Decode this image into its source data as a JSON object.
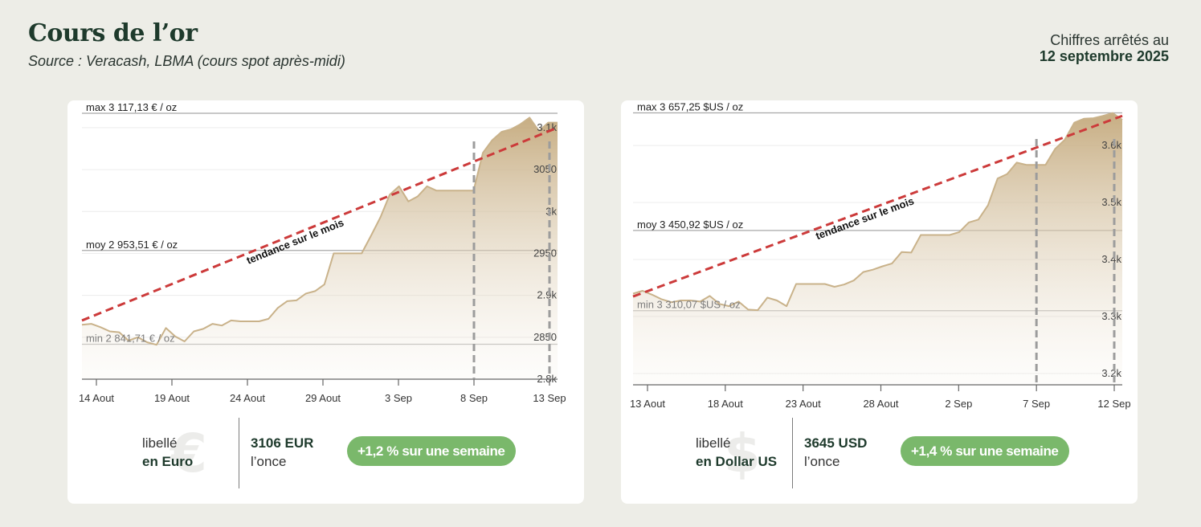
{
  "header": {
    "title": "Cours de l’or",
    "subtitle": "Source : Veracash, LBMA (cours spot après-midi)",
    "date_prefix": "Chiffres arrêtés au",
    "date": "12 septembre 2025"
  },
  "colors": {
    "background": "#edede7",
    "line": "#c9b28a",
    "trend": "#cc3a3a",
    "pill": "#7ab86b",
    "title": "#1e3a2c"
  },
  "chart_data": [
    {
      "type": "area",
      "currency": "EUR",
      "x_ticks": [
        "14 Aout",
        "19 Aout",
        "24 Aout",
        "29 Aout",
        "3 Sep",
        "8 Sep",
        "13 Sep"
      ],
      "y_ticks": [
        "2.8k",
        "2850",
        "2.9k",
        "2950",
        "3k",
        "3050",
        "3.1k"
      ],
      "ylim": [
        2800,
        3120
      ],
      "x": [
        0,
        0.6,
        1.2,
        1.8,
        2.4,
        3,
        3.6,
        4.2,
        4.8,
        5.4,
        6,
        6.6,
        7.2,
        7.8,
        8.4,
        9,
        9.6,
        10.2,
        10.8,
        11.4,
        12,
        12.6,
        13.2,
        13.8,
        14.4,
        15,
        15.6,
        16.2,
        16.8,
        17.4,
        18,
        18.6,
        19.2,
        19.8,
        20.4,
        21,
        21.6,
        22.2,
        22.8,
        23.4,
        24,
        24.6,
        25.2,
        25.8,
        26.4,
        27,
        27.6,
        28.2,
        28.8,
        29.4,
        30,
        30.6
      ],
      "values": [
        2865,
        2866,
        2862,
        2857,
        2856,
        2846,
        2850,
        2844,
        2841,
        2861,
        2851,
        2845,
        2857,
        2860,
        2866,
        2864,
        2870,
        2869,
        2869,
        2869,
        2872,
        2885,
        2893,
        2894,
        2902,
        2905,
        2913,
        2950,
        2950,
        2950,
        2950,
        2971,
        2993,
        3020,
        3030,
        3012,
        3018,
        3030,
        3025,
        3025,
        3025,
        3025,
        3025,
        3070,
        3085,
        3095,
        3098,
        3104,
        3112,
        3096,
        3106,
        3106
      ],
      "trend": {
        "label": "tendance sur le mois",
        "from": 2870,
        "to": 3100
      },
      "reference_lines": [
        {
          "label": "max 3 117,13 € / oz",
          "value": 3117.13
        },
        {
          "label": "moy 2 953,51 € / oz",
          "value": 2953.51
        },
        {
          "label": "min 2 841,71 € / oz",
          "value": 2841.71
        }
      ],
      "markers": [
        "8 Sep",
        "13 Sep"
      ],
      "footer": {
        "libelle": "libellé",
        "currency_name": "en Euro",
        "icon_symbol": "€",
        "price": "3106 EUR",
        "unit": "l’once",
        "change": "+1,2 % sur une semaine"
      }
    },
    {
      "type": "area",
      "currency": "USD",
      "x_ticks": [
        "13 Aout",
        "18 Aout",
        "23 Aout",
        "28 Aout",
        "2 Sep",
        "7 Sep",
        "12 Sep"
      ],
      "y_ticks": [
        "3.2k",
        "3.3k",
        "3.4k",
        "3.5k",
        "3.6k"
      ],
      "ylim": [
        3180,
        3665
      ],
      "x": [
        0,
        0.6,
        1.2,
        1.8,
        2.4,
        3,
        3.6,
        4.2,
        4.8,
        5.4,
        6,
        6.6,
        7.2,
        7.8,
        8.4,
        9,
        9.6,
        10.2,
        10.8,
        11.4,
        12,
        12.6,
        13.2,
        13.8,
        14.4,
        15,
        15.6,
        16.2,
        16.8,
        17.4,
        18,
        18.6,
        19.2,
        19.8,
        20.4,
        21,
        21.6,
        22.2,
        22.8,
        23.4,
        24,
        24.6,
        25.2,
        25.8,
        26.4,
        27,
        27.6,
        28.2,
        28.8,
        29.4,
        30,
        30.6
      ],
      "values": [
        3340,
        3345,
        3338,
        3330,
        3325,
        3328,
        3328,
        3326,
        3336,
        3322,
        3318,
        3326,
        3312,
        3311,
        3333,
        3328,
        3318,
        3357,
        3357,
        3357,
        3357,
        3352,
        3356,
        3363,
        3378,
        3382,
        3388,
        3393,
        3413,
        3412,
        3443,
        3443,
        3443,
        3443,
        3448,
        3465,
        3470,
        3495,
        3542,
        3550,
        3570,
        3566,
        3566,
        3566,
        3594,
        3610,
        3640,
        3647,
        3648,
        3652,
        3657,
        3645
      ],
      "trend": {
        "label": "tendance sur le mois",
        "from": 3335,
        "to": 3652
      },
      "reference_lines": [
        {
          "label": "max 3 657,25 $US / oz",
          "value": 3657.25
        },
        {
          "label": "moy 3 450,92 $US / oz",
          "value": 3450.92
        },
        {
          "label": "min 3 310,07 $US / oz",
          "value": 3310.07
        }
      ],
      "markers": [
        "7 Sep",
        "12 Sep"
      ],
      "footer": {
        "libelle": "libellé",
        "currency_name": "en Dollar US",
        "icon_symbol": "$",
        "price": "3645 USD",
        "unit": "l’once",
        "change": "+1,4 % sur une semaine"
      }
    }
  ]
}
